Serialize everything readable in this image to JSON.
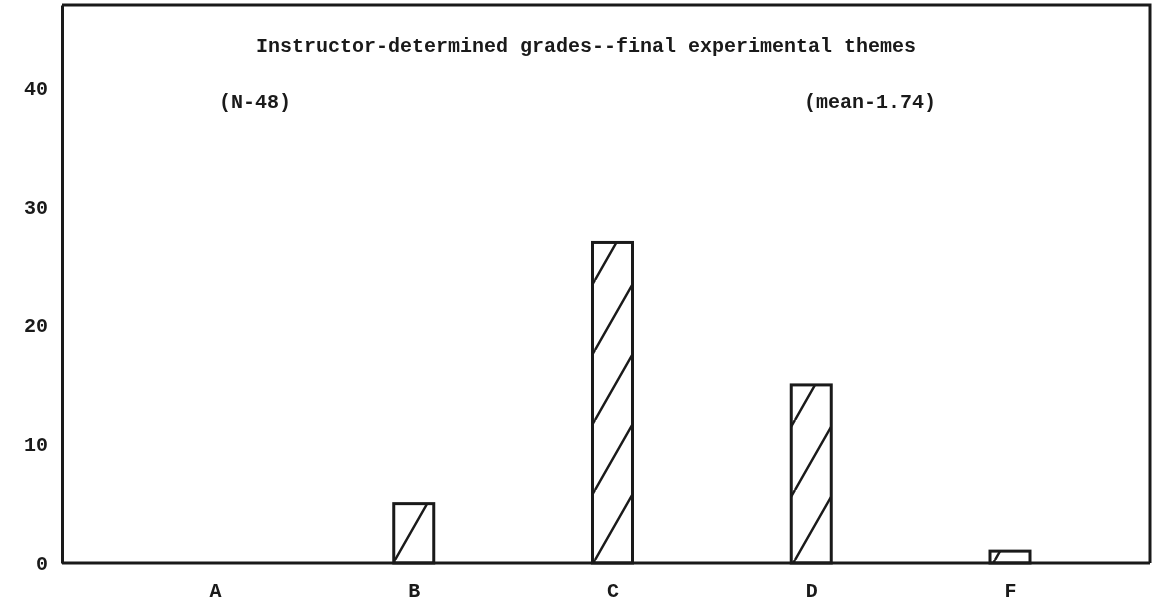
{
  "chart_data": {
    "type": "bar",
    "title": "Instructor-determined grades--final experimental themes",
    "annotations": [
      "(N-48)",
      "(mean-1.74)"
    ],
    "categories": [
      "A",
      "B",
      "C",
      "D",
      "F"
    ],
    "values": [
      0,
      5,
      27,
      15,
      1
    ],
    "color": "#1a1a1a",
    "ylim": [
      0,
      47
    ],
    "yticks": [
      0,
      10,
      20,
      30,
      40
    ],
    "grid": false
  }
}
